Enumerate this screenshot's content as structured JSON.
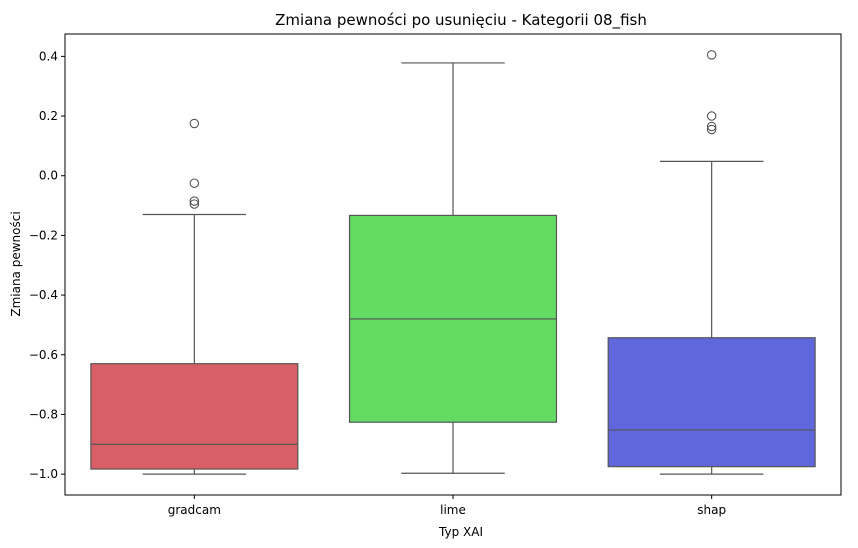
{
  "chart_data": {
    "type": "box",
    "title": "Zmiana pewności po usunięciu - Kategorii 08_fish",
    "xlabel": "Typ XAI",
    "ylabel": "Zmiana pewności",
    "ylim": [
      -1.07,
      0.475
    ],
    "yticks": [
      -1.0,
      -0.8,
      -0.6,
      -0.4,
      -0.2,
      0.0,
      0.2,
      0.4
    ],
    "ytick_labels": [
      "−1.0",
      "−0.8",
      "−0.6",
      "−0.4",
      "−0.2",
      "0.0",
      "0.2",
      "0.4"
    ],
    "categories": [
      "gradcam",
      "lime",
      "shap"
    ],
    "series": [
      {
        "name": "gradcam",
        "color": "#d95f66",
        "whisker_low": -1.0,
        "q1": -0.983,
        "median": -0.9,
        "q3": -0.63,
        "whisker_high": -0.13,
        "outliers": [
          0.175,
          -0.025,
          -0.085,
          -0.095
        ]
      },
      {
        "name": "lime",
        "color": "#62dc62",
        "whisker_low": -0.997,
        "q1": -0.826,
        "median": -0.48,
        "q3": -0.133,
        "whisker_high": 0.378,
        "outliers": []
      },
      {
        "name": "shap",
        "color": "#6066dc",
        "whisker_low": -1.0,
        "q1": -0.975,
        "median": -0.852,
        "q3": -0.543,
        "whisker_high": 0.048,
        "outliers": [
          0.405,
          0.2,
          0.165,
          0.155
        ]
      }
    ],
    "grid": false,
    "legend": "none"
  }
}
